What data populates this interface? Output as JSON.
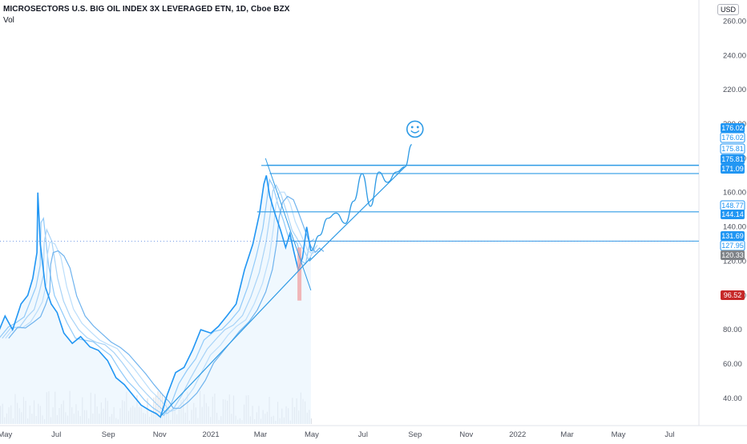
{
  "header": {
    "title": "MICROSECTORS U.S. BIG OIL INDEX 3X LEVERAGED ETN, 1D, Cboe BZX",
    "volume_label": "Vol",
    "currency": "USD"
  },
  "colors": {
    "price_line": "#2196f3",
    "ma_lines": [
      "#90caf9",
      "#a8d3f7",
      "#bbdefb",
      "#6fb3ee"
    ],
    "drawing": "#2f9be5",
    "tag_blue": "#2196f3",
    "tag_grey": "#7f8388",
    "tag_red": "#c62828",
    "volume": "#d1d4dc"
  },
  "chart_data": {
    "type": "line",
    "x_tick_labels": [
      "May",
      "Jul",
      "Sep",
      "Nov",
      "2021",
      "Mar",
      "May",
      "Jul",
      "Sep",
      "Nov",
      "2022",
      "Mar",
      "May",
      "Jul"
    ],
    "y_tick_labels": [
      "40.00",
      "60.00",
      "80.00",
      "100.00",
      "120.00",
      "140.00",
      "160.00",
      "180.00",
      "200.00",
      "220.00",
      "240.00",
      "260.00"
    ],
    "ylim": [
      25,
      270
    ],
    "y_ticks": [
      40,
      60,
      80,
      100,
      120,
      140,
      160,
      180,
      200,
      220,
      240,
      260
    ],
    "series": [
      {
        "role": "price",
        "x": [
          "2020-04-20",
          "2020-05-01",
          "2020-05-10",
          "2020-05-20",
          "2020-05-28",
          "2020-06-03",
          "2020-06-08",
          "2020-06-09",
          "2020-06-12",
          "2020-06-18",
          "2020-06-25",
          "2020-07-02",
          "2020-07-10",
          "2020-07-20",
          "2020-07-30",
          "2020-08-10",
          "2020-08-20",
          "2020-08-31",
          "2020-09-10",
          "2020-09-20",
          "2020-09-30",
          "2020-10-10",
          "2020-10-20",
          "2020-10-28",
          "2020-11-02",
          "2020-11-10",
          "2020-11-20",
          "2020-11-30",
          "2020-12-10",
          "2020-12-20",
          "2021-01-01",
          "2021-01-10",
          "2021-01-20",
          "2021-01-31",
          "2021-02-10",
          "2021-02-20",
          "2021-02-28",
          "2021-03-05",
          "2021-03-08",
          "2021-03-12",
          "2021-03-18",
          "2021-03-25",
          "2021-03-31",
          "2021-04-05",
          "2021-04-10",
          "2021-04-15",
          "2021-04-20",
          "2021-04-25",
          "2021-04-30"
        ],
        "y": [
          75,
          88,
          80,
          95,
          100,
          110,
          125,
          160,
          130,
          105,
          95,
          90,
          78,
          72,
          76,
          70,
          68,
          62,
          52,
          48,
          42,
          36,
          33,
          31,
          29,
          42,
          55,
          58,
          68,
          80,
          78,
          82,
          88,
          95,
          115,
          130,
          148,
          165,
          170,
          158,
          148,
          138,
          128,
          136,
          125,
          115,
          122,
          140,
          126
        ]
      },
      {
        "role": "projection",
        "x": [
          "2021-04-30",
          "2021-05-10",
          "2021-05-20",
          "2021-05-30",
          "2021-06-10",
          "2021-06-20",
          "2021-06-30",
          "2021-07-10",
          "2021-07-20",
          "2021-07-30",
          "2021-08-10",
          "2021-08-20",
          "2021-08-28"
        ],
        "y": [
          126,
          135,
          145,
          148,
          142,
          155,
          171,
          152,
          172,
          166,
          172,
          175,
          188
        ]
      }
    ],
    "horizontal_lines": [
      {
        "label": "176.02",
        "value": 176.02
      },
      {
        "label": "175.81",
        "value": 175.81
      },
      {
        "label": "171.09",
        "value": 171.09
      },
      {
        "label": "148.77",
        "value": 148.77
      },
      {
        "label": "131.69",
        "value": 131.69
      }
    ],
    "price_tags": [
      {
        "label": "176.02",
        "value": 176.02,
        "color": "blue"
      },
      {
        "label": "176.02",
        "value": 176.02,
        "color": "blue-outline"
      },
      {
        "label": "175.81",
        "value": 175.81,
        "color": "blue-outline"
      },
      {
        "label": "175.81",
        "value": 175.81,
        "color": "blue"
      },
      {
        "label": "171.09",
        "value": 171.09,
        "color": "blue"
      },
      {
        "label": "148.77",
        "value": 148.77,
        "color": "blue-outline"
      },
      {
        "label": "144.14",
        "value": 144.14,
        "color": "blue"
      },
      {
        "label": "131.69",
        "value": 131.69,
        "color": "blue"
      },
      {
        "label": "127.95",
        "value": 127.95,
        "color": "blue-outline"
      },
      {
        "label": "120.33",
        "value": 120.33,
        "color": "grey"
      },
      {
        "label": "96.52",
        "value": 96.52,
        "color": "red"
      }
    ],
    "trendlines": [
      {
        "from": {
          "x": "2020-11-01",
          "y": 29
        },
        "to": {
          "x": "2021-04-30",
          "y": 122
        }
      },
      {
        "from": {
          "x": "2021-04-28",
          "y": 120
        },
        "to": {
          "x": "2021-08-20",
          "y": 175
        }
      }
    ],
    "annotation": "smiley",
    "grid": false
  }
}
